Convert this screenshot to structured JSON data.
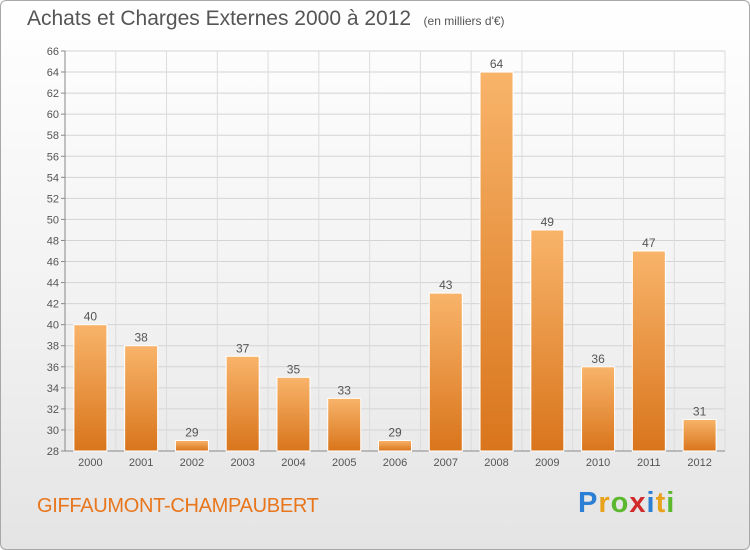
{
  "header": {
    "title": "Achats et Charges Externes 2000 à 2012",
    "subtitle": "(en milliers d'€)"
  },
  "footer": {
    "commune": "GIFFAUMONT-CHAMPAUBERT"
  },
  "logo": {
    "letters": [
      "P",
      "r",
      "o",
      "x",
      "i",
      "t",
      "i"
    ],
    "colors": [
      "#2b7fd4",
      "#e8a21c",
      "#5cb82e",
      "#d12a2a",
      "#2b7fd4",
      "#e8a21c",
      "#5cb82e"
    ]
  },
  "colors": {
    "bar": "#f0913a",
    "bar_light": "#f8b46a",
    "bar_dark": "#d9751c",
    "text": "#555555"
  },
  "chart_data": {
    "type": "bar",
    "categories": [
      "2000",
      "2001",
      "2002",
      "2003",
      "2004",
      "2005",
      "2006",
      "2007",
      "2008",
      "2009",
      "2010",
      "2011",
      "2012"
    ],
    "values": [
      40,
      38,
      29,
      37,
      35,
      33,
      29,
      43,
      64,
      49,
      36,
      47,
      31
    ],
    "title": "Achats et Charges Externes 2000 à 2012",
    "subtitle": "(en milliers d'€)",
    "ylim": [
      28,
      66
    ],
    "yticks": [
      28,
      30,
      32,
      34,
      36,
      38,
      40,
      42,
      44,
      46,
      48,
      50,
      52,
      54,
      56,
      58,
      60,
      62,
      64,
      66
    ],
    "grid": true,
    "data_labels": true
  }
}
